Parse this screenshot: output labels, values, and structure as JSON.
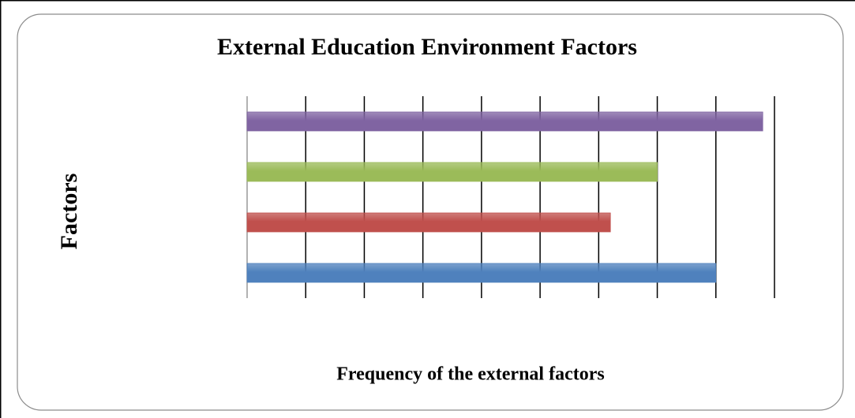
{
  "chart_data": {
    "type": "bar",
    "orientation": "horizontal",
    "title": "External Education Environment Factors",
    "xlabel": "Frequency of the external factors",
    "ylabel": "Factors",
    "categories": [
      null,
      null,
      null,
      null
    ],
    "values": [
      8,
      6.2,
      7,
      8.8
    ],
    "colors": [
      "#4f81bd",
      "#c0504d",
      "#9bbb59",
      "#8064a2"
    ],
    "xlim": [
      0,
      9
    ],
    "xticks": [
      0,
      1,
      2,
      3,
      4,
      5,
      6,
      7,
      8,
      9
    ],
    "grid": true
  }
}
